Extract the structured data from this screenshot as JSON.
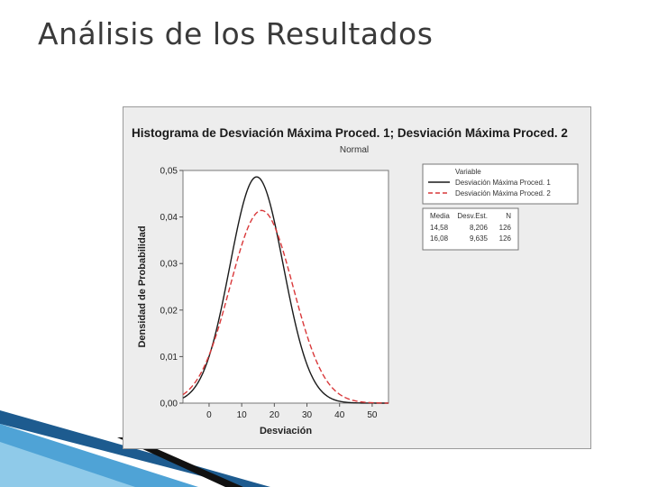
{
  "slide": {
    "title": "Análisis de los Resultados"
  },
  "chart_data": {
    "type": "line",
    "title": "Histograma de Desviación Máxima Proced. 1; Desviación Máxima Proced. 2",
    "subtitle": "Normal",
    "xlabel": "Desviación",
    "ylabel": "Densidad de Probabilidad",
    "xlim": [
      -8,
      55
    ],
    "ylim": [
      0,
      0.05
    ],
    "x_ticks": [
      0,
      10,
      20,
      30,
      40,
      50
    ],
    "y_ticks": [
      "0,00",
      "0,01",
      "0,02",
      "0,03",
      "0,04",
      "0,05"
    ],
    "y_tick_values": [
      0,
      0.01,
      0.02,
      0.03,
      0.04,
      0.05
    ],
    "grid": false,
    "legend": {
      "title": "Variable",
      "placement": "right"
    },
    "series": [
      {
        "name": "Desviación Máxima Proced. 1",
        "distribution": "normal",
        "mean": 14.58,
        "sd": 8.206,
        "n": 126,
        "color": "#1a1a1a",
        "style": "solid"
      },
      {
        "name": "Desviación Máxima Proced. 2",
        "distribution": "normal",
        "mean": 16.08,
        "sd": 9.635,
        "n": 126,
        "color": "#d9383a",
        "style": "dashed"
      }
    ],
    "stats_table": {
      "headers": [
        "Media",
        "Desv.Est.",
        "N"
      ],
      "rows": [
        [
          "14,58",
          "8,206",
          "126"
        ],
        [
          "16,08",
          "9,635",
          "126"
        ]
      ]
    }
  },
  "decor": {
    "stripe_colors": [
      "#1d5b8f",
      "#4fa3d6",
      "#9fd3ee"
    ]
  }
}
